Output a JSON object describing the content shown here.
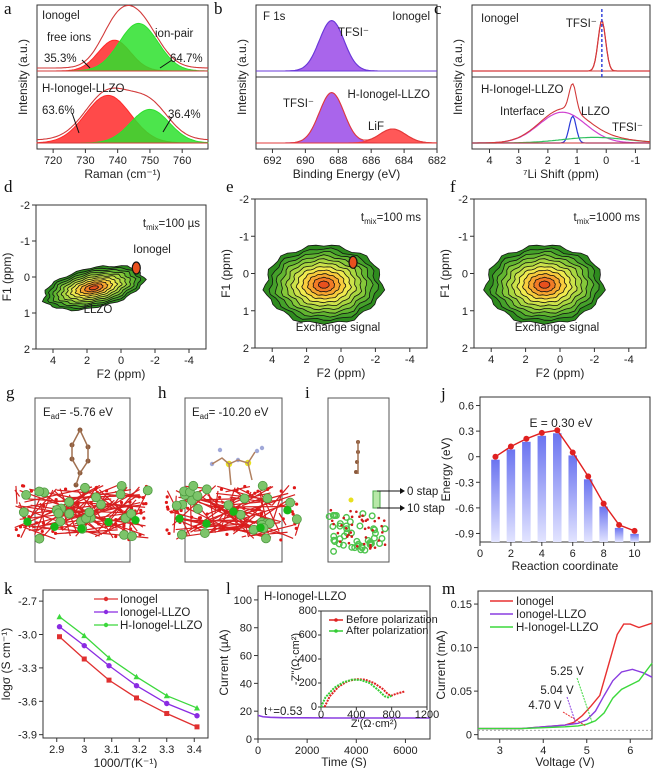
{
  "figure": {
    "panel_labels": [
      "a",
      "b",
      "c",
      "d",
      "e",
      "f",
      "g",
      "h",
      "i",
      "j",
      "k",
      "l",
      "m"
    ]
  },
  "chart_data": [
    {
      "id": "a",
      "type": "area",
      "title": "",
      "xlabel": "Raman (cm⁻¹)",
      "ylabel": "Intensity (a.u.)",
      "xlim": [
        715,
        768
      ],
      "xticks": [
        720,
        730,
        740,
        750,
        760
      ],
      "subpanels": [
        {
          "label": "Ionogel",
          "peaks": [
            {
              "name": "free ions",
              "center": 739,
              "height": 0.55,
              "width": 5,
              "color": "#ff2a2a",
              "percent": "35.3%"
            },
            {
              "name": "ion-pair",
              "center": 746.5,
              "height": 0.85,
              "width": 6,
              "color": "#2de02d",
              "percent": "64.7%"
            }
          ]
        },
        {
          "label": "H-Ionogel-LLZO",
          "peaks": [
            {
              "name": "free ions",
              "center": 737,
              "height": 0.85,
              "width": 7,
              "color": "#ff2a2a",
              "percent": "63.6%"
            },
            {
              "name": "ion-pair",
              "center": 750,
              "height": 0.6,
              "width": 6,
              "color": "#2de02d",
              "percent": "36.4%"
            }
          ]
        }
      ],
      "annotations": [
        "free ions",
        "ion-pair",
        "35.3%",
        "64.7%",
        "63.6%",
        "36.4%"
      ]
    },
    {
      "id": "b",
      "type": "area",
      "xlabel": "Binding Energy (eV)",
      "ylabel": "Intensity (a.u.)",
      "xlim": [
        693,
        682
      ],
      "xticks": [
        692,
        690,
        688,
        686,
        684,
        682
      ],
      "corner_label": "F 1s",
      "subpanels": [
        {
          "label": "Ionogel",
          "peaks": [
            {
              "name": "TFSI⁻",
              "center": 688.4,
              "height": 0.9,
              "width": 0.75,
              "color": "#9a4ae8"
            }
          ]
        },
        {
          "label": "H-Ionogel-LLZO",
          "peaks": [
            {
              "name": "TFSI⁻",
              "center": 688.4,
              "height": 0.9,
              "width": 0.75,
              "color": "#9a4ae8"
            },
            {
              "name": "LiF",
              "center": 684.7,
              "height": 0.25,
              "width": 0.8,
              "color": "#ff3b3b"
            }
          ]
        }
      ]
    },
    {
      "id": "c",
      "type": "line",
      "xlabel": "⁷Li Shift (ppm)",
      "ylabel": "Intensity (a.u.)",
      "xlim": [
        4.6,
        -1.5
      ],
      "xticks": [
        4,
        3,
        2,
        1,
        0,
        -1
      ],
      "subpanels": [
        {
          "label": "Ionogel",
          "peaks": [
            {
              "name": "TFSI⁻",
              "center": 0.15,
              "height": 0.9,
              "width": 0.13,
              "color": "#e0303a"
            }
          ]
        },
        {
          "label": "H-Ionogel-LLZO",
          "peaks": [
            {
              "name": "Interface",
              "center": 1.5,
              "height": 0.55,
              "width": 0.8,
              "color": "#d040d0"
            },
            {
              "name": "LLZO",
              "center": 1.15,
              "height": 0.48,
              "width": 0.12,
              "color": "#2a3ad8"
            },
            {
              "name": "TFSI⁻",
              "center": 0.4,
              "height": 0.1,
              "width": 1.1,
              "color": "#30c060"
            }
          ]
        }
      ]
    },
    {
      "id": "d",
      "type": "heatmap",
      "xlabel": "F2 (ppm)",
      "ylabel": "F1 (ppm)",
      "xlim": [
        5,
        -5
      ],
      "ylim": [
        -2,
        2
      ],
      "xticks": [
        4,
        2,
        0,
        -2,
        -4
      ],
      "yticks": [
        -2,
        -1,
        0,
        1,
        2
      ],
      "tmix": "100 µs",
      "annotations": [
        "Ionogel",
        "LLZO"
      ]
    },
    {
      "id": "e",
      "type": "heatmap",
      "xlabel": "F2 (ppm)",
      "ylabel": "F1 (ppm)",
      "xlim": [
        5,
        -5
      ],
      "ylim": [
        -2,
        2
      ],
      "xticks": [
        4,
        2,
        0,
        -2,
        -4
      ],
      "yticks": [
        -2,
        -1,
        0,
        1,
        2
      ],
      "tmix": "100 ms",
      "annotations": [
        "Exchange signal"
      ]
    },
    {
      "id": "f",
      "type": "heatmap",
      "xlabel": "F2 (ppm)",
      "ylabel": "F1 (ppm)",
      "xlim": [
        5,
        -5
      ],
      "ylim": [
        -2,
        2
      ],
      "xticks": [
        4,
        2,
        0,
        -2,
        -4
      ],
      "yticks": [
        -2,
        -1,
        0,
        1,
        2
      ],
      "tmix": "1000 ms",
      "annotations": [
        "Exchange signal"
      ]
    },
    {
      "id": "j",
      "type": "bar",
      "title": "E = 0.30 eV",
      "xlabel": "Reaction coordinate",
      "ylabel": "Energy (eV)",
      "xlim": [
        0,
        11
      ],
      "ylim": [
        -1.0,
        0.7
      ],
      "xticks": [
        0,
        2,
        4,
        6,
        8,
        10
      ],
      "yticks": [
        0.6,
        0.3,
        0,
        -0.3,
        -0.6,
        -0.9
      ],
      "x": [
        1,
        2,
        3,
        4,
        5,
        6,
        7,
        8,
        9,
        10
      ],
      "values": [
        0.0,
        0.12,
        0.21,
        0.28,
        0.31,
        0.05,
        -0.23,
        -0.55,
        -0.8,
        -0.87
      ],
      "bar_color": "#6b74f0",
      "line_color": "#e02020"
    },
    {
      "id": "k",
      "type": "line",
      "xlabel": "1000/T(K⁻¹)",
      "ylabel": "logσ (S cm⁻¹)",
      "xlim": [
        2.85,
        3.45
      ],
      "ylim": [
        -3.93,
        -2.6
      ],
      "xticks": [
        2.9,
        3.0,
        3.1,
        3.2,
        3.3,
        3.4
      ],
      "yticks": [
        -2.7,
        -3.0,
        -3.3,
        -3.6,
        -3.9
      ],
      "x": [
        2.91,
        3.0,
        3.09,
        3.19,
        3.3,
        3.41
      ],
      "legend_position": "top-right",
      "series": [
        {
          "name": "Ionogel",
          "marker": "square",
          "color": "#e03030",
          "values": [
            -3.02,
            -3.22,
            -3.41,
            -3.57,
            -3.71,
            -3.83
          ]
        },
        {
          "name": "Ionogel-LLZO",
          "marker": "circle",
          "color": "#8a2be2",
          "values": [
            -2.93,
            -3.1,
            -3.28,
            -3.46,
            -3.62,
            -3.73
          ]
        },
        {
          "name": "H-Ionogel-LLZO",
          "marker": "triangle",
          "color": "#3cd83c",
          "values": [
            -2.84,
            -3.01,
            -3.21,
            -3.38,
            -3.55,
            -3.66
          ]
        }
      ]
    },
    {
      "id": "l",
      "type": "line",
      "xlabel": "Time (S)",
      "ylabel": "Current (µA)",
      "xlim": [
        0,
        7000
      ],
      "ylim": [
        0,
        110
      ],
      "xticks": [
        0,
        2000,
        4000,
        6000
      ],
      "yticks": [
        0,
        20,
        40,
        60,
        80,
        100
      ],
      "sample_label": "H-Ionogel-LLZO",
      "annotation": "t⁺=0.53",
      "series": [
        {
          "name": "current",
          "color": "#8a3de0",
          "x": [
            0,
            200,
            500,
            1000,
            2000,
            3000,
            4000,
            5000,
            6000,
            7000
          ],
          "values": [
            17,
            16,
            15.6,
            15.3,
            15.2,
            15.1,
            15.1,
            15.1,
            15.1,
            15.1
          ]
        }
      ],
      "inset": {
        "type": "line",
        "xlabel": "Z'(Ω·cm²)",
        "ylabel": "-Z''(Ω·cm²)",
        "xlim": [
          0,
          1200
        ],
        "ylim": [
          0,
          800
        ],
        "xticks": [
          0,
          400,
          800,
          1200
        ],
        "yticks": [
          0,
          200,
          400,
          600,
          800
        ],
        "legend_position": "top-right",
        "series": [
          {
            "name": "Before polarization",
            "color": "#e02020",
            "x": [
              40,
              100,
              200,
              300,
              400,
              500,
              600,
              700,
              760,
              800,
              850,
              900,
              950
            ],
            "values": [
              0,
              90,
              170,
              215,
              232,
              228,
              200,
              150,
              105,
              95,
              110,
              120,
              130
            ]
          },
          {
            "name": "After polarization",
            "color": "#33cc33",
            "x": [
              0,
              50,
              150,
              250,
              350,
              450,
              550,
              650,
              720,
              760,
              800
            ],
            "values": [
              0,
              80,
              160,
              205,
              228,
              225,
              200,
              140,
              90,
              80,
              95
            ]
          }
        ]
      }
    },
    {
      "id": "m",
      "type": "line",
      "xlabel": "Voltage (V)",
      "ylabel": "Current (mA)",
      "xlim": [
        2.5,
        6.5
      ],
      "ylim": [
        -0.005,
        0.165
      ],
      "xticks": [
        3,
        4,
        5,
        6
      ],
      "yticks": [
        0,
        0.05,
        0.1,
        0.15
      ],
      "ytick_labels": [
        "0",
        "0.05",
        "0.10",
        "0.15"
      ],
      "legend_position": "top-left",
      "series": [
        {
          "name": "Ionogel",
          "color": "#e83030",
          "x": [
            2.5,
            3.5,
            4.0,
            4.5,
            4.7,
            4.9,
            5.1,
            5.3,
            5.5,
            5.7,
            5.85,
            6.0,
            6.2,
            6.5
          ],
          "values": [
            0.007,
            0.007,
            0.009,
            0.011,
            0.014,
            0.022,
            0.033,
            0.045,
            0.08,
            0.115,
            0.127,
            0.127,
            0.123,
            0.128
          ]
        },
        {
          "name": "Ionogel-LLZO",
          "color": "#8a3de0",
          "x": [
            2.5,
            3.5,
            4.0,
            4.5,
            4.8,
            5.0,
            5.2,
            5.4,
            5.6,
            5.8,
            6.05,
            6.3,
            6.5
          ],
          "values": [
            0.007,
            0.007,
            0.009,
            0.011,
            0.013,
            0.017,
            0.027,
            0.045,
            0.062,
            0.072,
            0.075,
            0.071,
            0.066
          ]
        },
        {
          "name": "H-Ionogel-LLZO",
          "color": "#3cd83c",
          "x": [
            2.5,
            3.5,
            4.0,
            4.5,
            4.8,
            5.0,
            5.2,
            5.4,
            5.6,
            5.8,
            6.0,
            6.2,
            6.35,
            6.5
          ],
          "values": [
            0.007,
            0.007,
            0.008,
            0.009,
            0.01,
            0.012,
            0.016,
            0.025,
            0.042,
            0.052,
            0.057,
            0.062,
            0.072,
            0.082
          ]
        }
      ],
      "onset_annotations": [
        {
          "label": "4.70 V",
          "color": "#e83030",
          "at": 4.7
        },
        {
          "label": "5.04 V",
          "color": "#8a3de0",
          "at": 5.04
        },
        {
          "label": "5.25 V",
          "color": "#3cd83c",
          "at": 5.25
        }
      ]
    }
  ],
  "structures": {
    "g": {
      "label_prefix": "E",
      "label_sub": "ad",
      "label_value": "= -5.76 eV"
    },
    "h": {
      "label_prefix": "E",
      "label_sub": "ad",
      "label_value": "= -10.20 eV"
    },
    "i": {
      "step_labels": [
        "0 stap",
        "10 stap"
      ]
    }
  }
}
